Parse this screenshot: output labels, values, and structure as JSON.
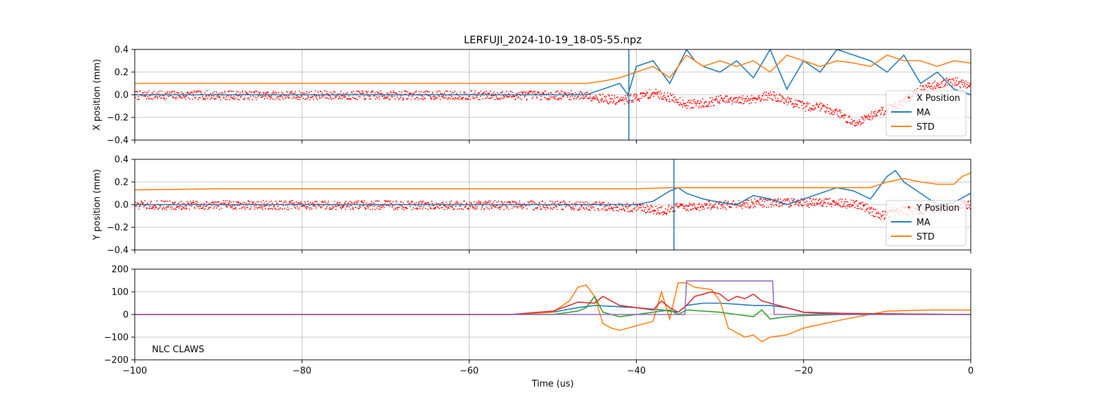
{
  "figure": {
    "title": "LERFUJI_2024-10-19_18-05-55.npz"
  },
  "colors": {
    "position_points": "#ff0000",
    "ma": "#1f77b4",
    "std": "#ff7f0e",
    "claws_1": "#1f77b4",
    "claws_2": "#ff7f0e",
    "claws_3": "#2ca02c",
    "claws_4": "#d62728",
    "claws_5": "#9467bd",
    "grid": "#b0b0b0"
  },
  "chart_data": [
    {
      "type": "scatter",
      "panel": "x",
      "ylabel": "X position (mm)",
      "xlim": [
        -100,
        0
      ],
      "ylim": [
        -0.4,
        0.4
      ],
      "yticks": [
        "0.4",
        "0.2",
        "0.0",
        "−0.2",
        "−0.4"
      ],
      "grid": true,
      "legend": {
        "placement": "lower-right",
        "entries": [
          "X Position",
          "MA",
          "STD"
        ]
      },
      "vline_x": -40.9,
      "series": [
        {
          "name": "X Position",
          "style": "points",
          "x": [
            -100,
            -90,
            -80,
            -70,
            -60,
            -50,
            -46,
            -44,
            -42,
            -40,
            -38,
            -36,
            -34,
            -32,
            -30,
            -28,
            -26,
            -24,
            -22,
            -20,
            -18,
            -16,
            -14,
            -12,
            -10,
            -8,
            -6,
            -4,
            -2,
            0
          ],
          "y": [
            0.0,
            0.0,
            0.0,
            0.0,
            0.0,
            0.0,
            0.0,
            -0.03,
            -0.05,
            -0.02,
            0.02,
            -0.02,
            -0.08,
            -0.07,
            -0.04,
            -0.05,
            -0.03,
            0.0,
            -0.05,
            -0.1,
            -0.1,
            -0.15,
            -0.25,
            -0.18,
            -0.12,
            -0.05,
            0.05,
            0.1,
            0.12,
            0.08
          ]
        },
        {
          "name": "MA",
          "style": "line",
          "x": [
            -100,
            -60,
            -50,
            -46,
            -44,
            -42,
            -41,
            -40,
            -38,
            -36,
            -34,
            -33,
            -32,
            -30,
            -28,
            -26,
            -24,
            -22,
            -20,
            -18,
            -16,
            -14,
            -12,
            -10,
            -8,
            -6,
            -4,
            -2,
            0
          ],
          "y": [
            0.0,
            0.0,
            0.0,
            0.0,
            0.05,
            0.1,
            0.0,
            0.25,
            0.3,
            0.1,
            0.4,
            0.3,
            0.25,
            0.2,
            0.3,
            0.15,
            0.4,
            0.05,
            0.3,
            0.2,
            0.4,
            0.35,
            0.3,
            0.2,
            0.35,
            0.1,
            0.2,
            0.05,
            0.0
          ]
        },
        {
          "name": "STD",
          "style": "line",
          "x": [
            -100,
            -80,
            -60,
            -50,
            -46,
            -44,
            -42,
            -40,
            -38,
            -36,
            -34,
            -32,
            -30,
            -28,
            -26,
            -24,
            -22,
            -20,
            -18,
            -16,
            -14,
            -12,
            -10,
            -8,
            -6,
            -4,
            -2,
            0
          ],
          "y": [
            0.1,
            0.1,
            0.1,
            0.1,
            0.1,
            0.12,
            0.15,
            0.2,
            0.25,
            0.15,
            0.35,
            0.25,
            0.3,
            0.25,
            0.3,
            0.2,
            0.35,
            0.3,
            0.25,
            0.3,
            0.28,
            0.25,
            0.35,
            0.3,
            0.3,
            0.25,
            0.3,
            0.28
          ]
        }
      ]
    },
    {
      "type": "scatter",
      "panel": "y",
      "ylabel": "Y position (mm)",
      "xlim": [
        -100,
        0
      ],
      "ylim": [
        -0.4,
        0.4
      ],
      "yticks": [
        "0.4",
        "0.2",
        "0.0",
        "−0.2",
        "−0.4"
      ],
      "grid": true,
      "legend": {
        "placement": "lower-right",
        "entries": [
          "Y Position",
          "MA",
          "STD"
        ]
      },
      "vline_x": -35.5,
      "series": [
        {
          "name": "Y Position",
          "style": "points",
          "x": [
            -100,
            -90,
            -80,
            -70,
            -60,
            -50,
            -40,
            -37,
            -35,
            -30,
            -25,
            -20,
            -16,
            -13,
            -11,
            -9,
            -6,
            -3,
            0
          ],
          "y": [
            0.0,
            0.0,
            0.0,
            0.0,
            0.0,
            0.0,
            -0.02,
            -0.05,
            -0.02,
            0.0,
            0.02,
            0.02,
            0.02,
            0.0,
            -0.1,
            -0.05,
            -0.05,
            -0.02,
            0.0
          ]
        },
        {
          "name": "MA",
          "style": "line",
          "x": [
            -100,
            -60,
            -40,
            -38,
            -36,
            -35,
            -34,
            -32,
            -30,
            -28,
            -26,
            -24,
            -22,
            -20,
            -18,
            -16,
            -14,
            -12,
            -10,
            -9,
            -8,
            -6,
            -4,
            -2,
            0
          ],
          "y": [
            0.0,
            0.0,
            0.0,
            0.03,
            0.12,
            0.15,
            0.1,
            0.05,
            0.02,
            0.0,
            0.08,
            0.05,
            0.0,
            0.05,
            0.1,
            0.15,
            0.12,
            0.05,
            0.25,
            0.3,
            0.2,
            0.1,
            0.0,
            0.02,
            0.1
          ]
        },
        {
          "name": "STD",
          "style": "line",
          "x": [
            -100,
            -90,
            -80,
            -70,
            -60,
            -50,
            -40,
            -36,
            -30,
            -25,
            -20,
            -15,
            -12,
            -10,
            -8,
            -6,
            -4,
            -2,
            -1,
            0
          ],
          "y": [
            0.13,
            0.14,
            0.14,
            0.14,
            0.14,
            0.14,
            0.14,
            0.15,
            0.15,
            0.15,
            0.15,
            0.15,
            0.15,
            0.2,
            0.23,
            0.2,
            0.18,
            0.18,
            0.25,
            0.28
          ]
        }
      ]
    },
    {
      "type": "line",
      "panel": "claws",
      "xlabel": "Time (us)",
      "annotation": "NLC CLAWS",
      "xlim": [
        -100,
        0
      ],
      "ylim": [
        -200,
        200
      ],
      "xticks": [
        "−100",
        "−80",
        "−60",
        "−40",
        "−20",
        "0"
      ],
      "yticks": [
        "200",
        "100",
        "0",
        "−100",
        "−200"
      ],
      "grid": true,
      "series": [
        {
          "x": [
            -100,
            -55,
            -50,
            -47,
            -45,
            -40,
            -37,
            -35,
            -34,
            -32,
            -30,
            -28,
            -26,
            -24,
            -22,
            -20,
            -18,
            0
          ],
          "y": [
            0,
            0,
            10,
            30,
            40,
            30,
            20,
            10,
            40,
            50,
            50,
            45,
            40,
            40,
            30,
            10,
            5,
            0
          ]
        },
        {
          "x": [
            -100,
            -55,
            -50,
            -48,
            -47,
            -46,
            -45,
            -44,
            -43,
            -42,
            -40,
            -38,
            -37,
            -36,
            -35,
            -34,
            -33,
            -31,
            -30,
            -29,
            -28,
            -27,
            -26,
            -25,
            -24,
            -22,
            -20,
            -15,
            -10,
            -5,
            0
          ],
          "y": [
            0,
            0,
            10,
            60,
            120,
            130,
            80,
            -40,
            -60,
            -70,
            -50,
            -30,
            100,
            -20,
            140,
            140,
            120,
            110,
            60,
            -60,
            -80,
            -100,
            -90,
            -120,
            -100,
            -90,
            -60,
            -20,
            15,
            20,
            20
          ]
        },
        {
          "x": [
            -100,
            -50,
            -47,
            -46,
            -45,
            -44,
            -42,
            -40,
            -38,
            -36,
            -35,
            -34,
            -32,
            -30,
            -28,
            -26,
            -25,
            -24,
            -22,
            -20,
            -15,
            0
          ],
          "y": [
            0,
            0,
            15,
            30,
            80,
            10,
            -10,
            0,
            10,
            20,
            0,
            20,
            15,
            10,
            0,
            -10,
            20,
            -20,
            -10,
            -5,
            0,
            0
          ]
        },
        {
          "x": [
            -100,
            -55,
            -50,
            -48,
            -47,
            -45,
            -44,
            -42,
            -40,
            -38,
            -37,
            -36,
            -35,
            -34,
            -33,
            -32,
            -31,
            -30,
            -29,
            -28,
            -27,
            -26,
            -25,
            -24,
            -22,
            -20,
            -15,
            0
          ],
          "y": [
            0,
            0,
            15,
            40,
            55,
            50,
            80,
            40,
            30,
            20,
            60,
            30,
            10,
            40,
            80,
            90,
            100,
            90,
            60,
            80,
            70,
            90,
            60,
            50,
            30,
            10,
            5,
            0
          ]
        },
        {
          "x": [
            -100,
            -34.2,
            -34,
            -23.7,
            -23.5,
            0
          ],
          "y": [
            0,
            0,
            148,
            148,
            0,
            0
          ]
        }
      ]
    }
  ]
}
